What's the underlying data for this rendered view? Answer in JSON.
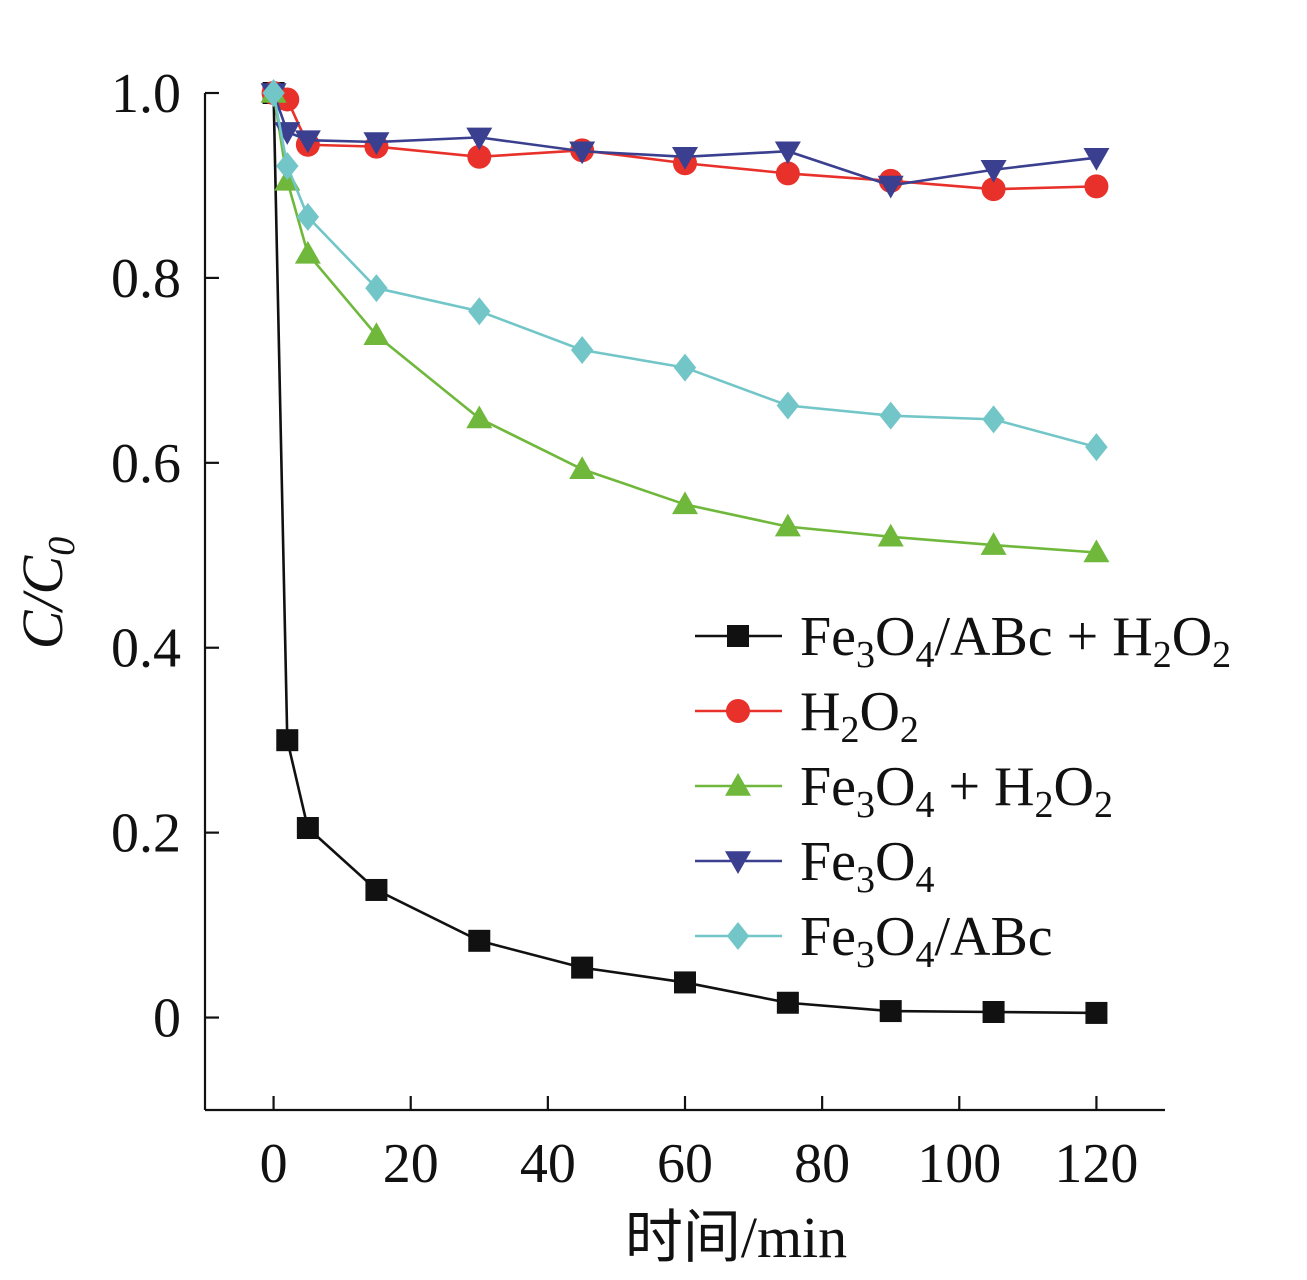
{
  "chart_data": {
    "type": "line",
    "title": "",
    "xlabel": "时间/min",
    "ylabel": "C/C0",
    "xlim": [
      -10,
      130
    ],
    "ylim": [
      -0.1,
      1.0
    ],
    "xticks": [
      0,
      20,
      40,
      60,
      80,
      100,
      120
    ],
    "yticks": [
      0,
      0.2,
      0.4,
      0.6,
      0.8,
      1.0
    ],
    "xtick_labels": [
      "0",
      "20",
      "40",
      "60",
      "80",
      "100",
      "120"
    ],
    "ytick_labels": [
      "0",
      "0.2",
      "0.4",
      "0.6",
      "0.8",
      "1.0"
    ],
    "grid": false,
    "legend_position": "center-right",
    "series": [
      {
        "name": "Fe3O4/ABc + H2O2",
        "color": "#111111",
        "marker": "square",
        "x": [
          0,
          2,
          5,
          15,
          30,
          45,
          60,
          75,
          90,
          105,
          120
        ],
        "y": [
          1.0,
          0.3,
          0.205,
          0.138,
          0.083,
          0.054,
          0.038,
          0.016,
          0.007,
          0.006,
          0.005
        ]
      },
      {
        "name": "H2O2",
        "color": "#e8312a",
        "marker": "circle",
        "x": [
          0,
          2,
          5,
          15,
          30,
          45,
          60,
          75,
          90,
          105,
          120
        ],
        "y": [
          1.0,
          0.993,
          0.944,
          0.942,
          0.931,
          0.938,
          0.924,
          0.913,
          0.905,
          0.896,
          0.899
        ]
      },
      {
        "name": "Fe3O4 + H2O2",
        "color": "#6fb83c",
        "marker": "triangle-up",
        "x": [
          0,
          2,
          5,
          15,
          30,
          45,
          60,
          75,
          90,
          105,
          120
        ],
        "y": [
          1.0,
          0.905,
          0.826,
          0.738,
          0.648,
          0.593,
          0.555,
          0.531,
          0.52,
          0.511,
          0.503
        ]
      },
      {
        "name": "Fe3O4",
        "color": "#3a3f8f",
        "marker": "triangle-down",
        "x": [
          0,
          2,
          5,
          15,
          30,
          45,
          60,
          75,
          90,
          105,
          120
        ],
        "y": [
          1.0,
          0.958,
          0.949,
          0.947,
          0.952,
          0.937,
          0.931,
          0.937,
          0.9,
          0.917,
          0.93
        ]
      },
      {
        "name": "Fe3O4/ABc",
        "color": "#73c6c8",
        "marker": "diamond",
        "x": [
          0,
          2,
          5,
          15,
          30,
          45,
          60,
          75,
          90,
          105,
          120
        ],
        "y": [
          1.0,
          0.921,
          0.866,
          0.789,
          0.764,
          0.722,
          0.703,
          0.662,
          0.651,
          0.647,
          0.617
        ]
      }
    ]
  }
}
